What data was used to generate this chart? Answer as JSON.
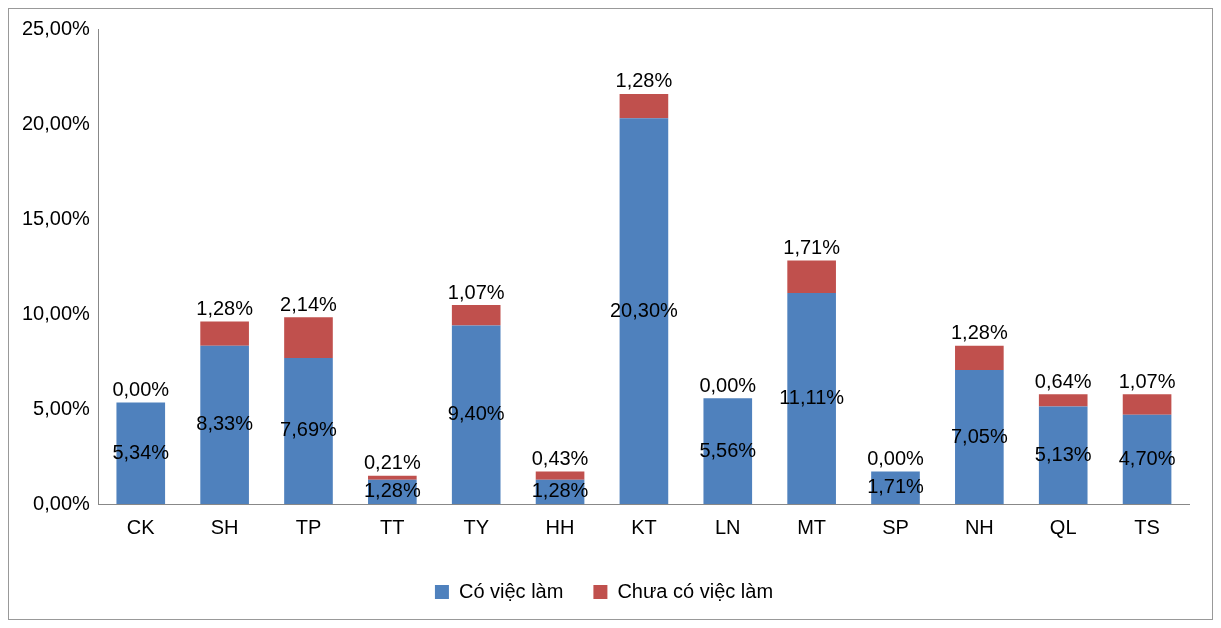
{
  "chart_data": {
    "type": "bar",
    "stacked": true,
    "categories": [
      "CK",
      "SH",
      "TP",
      "TT",
      "TY",
      "HH",
      "KT",
      "LN",
      "MT",
      "SP",
      "NH",
      "QL",
      "TS"
    ],
    "series": [
      {
        "name": "Có việc làm",
        "color": "#4f81bd",
        "values": [
          5.34,
          8.33,
          7.69,
          1.28,
          9.4,
          1.28,
          20.3,
          5.56,
          11.11,
          1.71,
          7.05,
          5.13,
          4.7
        ],
        "value_labels": [
          "5,34%",
          "8,33%",
          "7,69%",
          "1,28%",
          "9,40%",
          "1,28%",
          "20,30%",
          "5,56%",
          "11,11%",
          "1,71%",
          "7,05%",
          "5,13%",
          "4,70%"
        ]
      },
      {
        "name": "Chưa có việc làm",
        "color": "#c0504d",
        "values": [
          0.0,
          1.28,
          2.14,
          0.21,
          1.07,
          0.43,
          1.28,
          0.0,
          1.71,
          0.0,
          1.28,
          0.64,
          1.07
        ],
        "value_labels": [
          "0,00%",
          "1,28%",
          "2,14%",
          "0,21%",
          "1,07%",
          "0,43%",
          "1,28%",
          "0,00%",
          "1,71%",
          "0,00%",
          "1,28%",
          "0,64%",
          "1,07%"
        ]
      }
    ],
    "ylim": [
      0,
      25
    ],
    "yticks": [
      {
        "value": 0,
        "label": "0,00%"
      },
      {
        "value": 5,
        "label": "5,00%"
      },
      {
        "value": 10,
        "label": "10,00%"
      },
      {
        "value": 15,
        "label": "15,00%"
      },
      {
        "value": 20,
        "label": "20,00%"
      },
      {
        "value": 25,
        "label": "25,00%"
      }
    ],
    "grid": false,
    "legend": "bottom"
  }
}
